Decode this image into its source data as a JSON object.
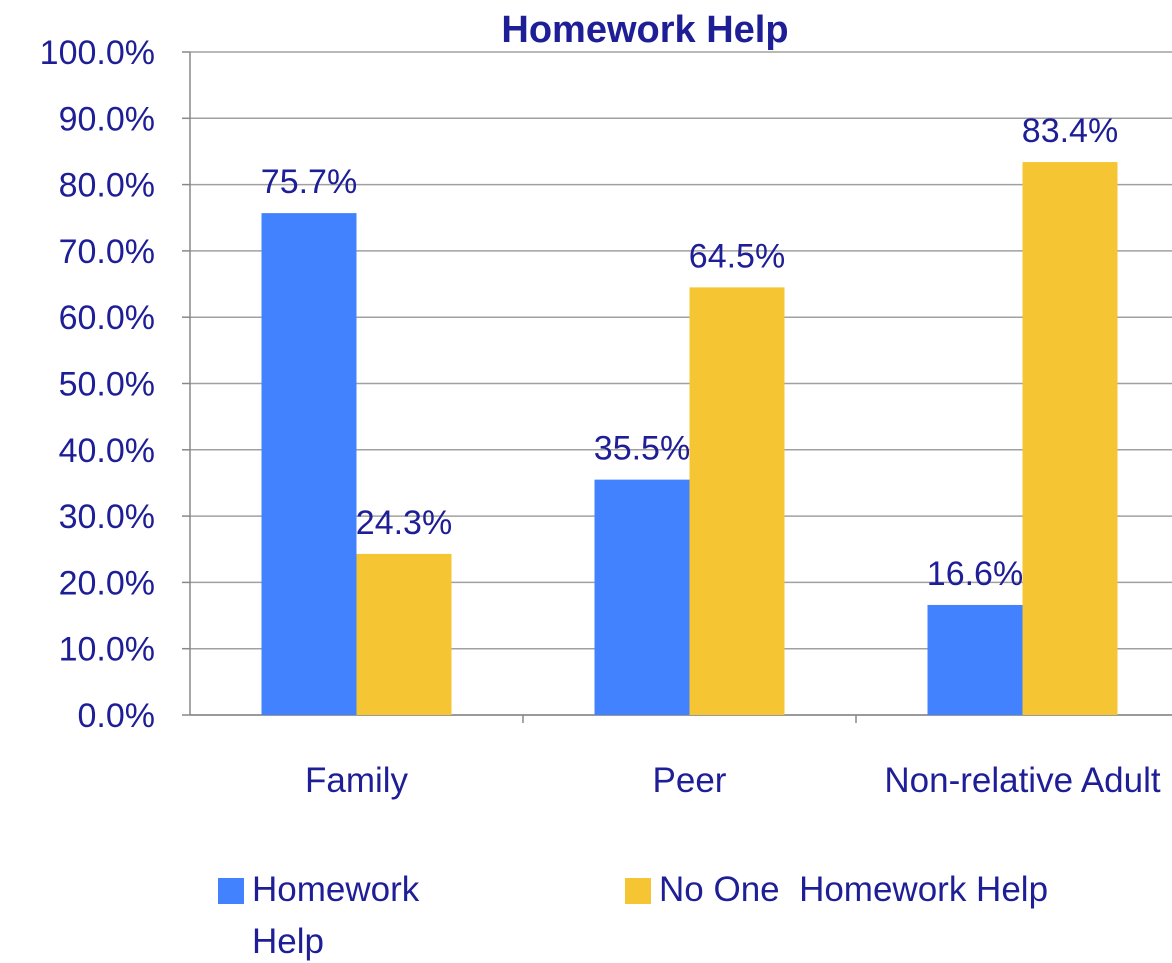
{
  "chart_data": {
    "type": "bar",
    "title": "Homework Help",
    "categories": [
      "Family",
      "Peer",
      "Non-relative Adult"
    ],
    "series": [
      {
        "name": "Homework Help",
        "color": "#4382ff",
        "values": [
          75.7,
          35.5,
          16.6
        ],
        "value_labels": [
          "75.7%",
          "35.5%",
          "16.6%"
        ]
      },
      {
        "name": "No One  Homework Help",
        "color": "#f6c533",
        "values": [
          24.3,
          64.5,
          83.4
        ],
        "value_labels": [
          "24.3%",
          "64.5%",
          "83.4%"
        ]
      }
    ],
    "ylim": [
      0,
      100
    ],
    "yticks": [
      {
        "value": 0,
        "label": "0.0%"
      },
      {
        "value": 10,
        "label": "10.0%"
      },
      {
        "value": 20,
        "label": "20.0%"
      },
      {
        "value": 30,
        "label": "30.0%"
      },
      {
        "value": 40,
        "label": "40.0%"
      },
      {
        "value": 50,
        "label": "50.0%"
      },
      {
        "value": 60,
        "label": "60.0%"
      },
      {
        "value": 70,
        "label": "70.0%"
      },
      {
        "value": 80,
        "label": "80.0%"
      },
      {
        "value": 90,
        "label": "90.0%"
      },
      {
        "value": 100,
        "label": "100.0%"
      }
    ],
    "grid": true,
    "legend": "bottom"
  }
}
